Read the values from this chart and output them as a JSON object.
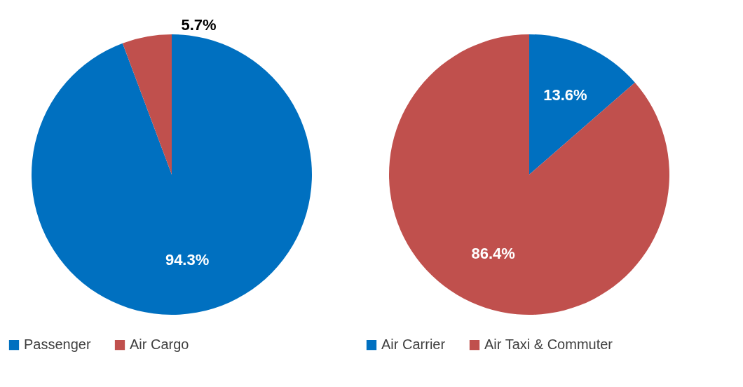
{
  "chart_data": [
    {
      "type": "pie",
      "categories": [
        "Passenger",
        "Air Cargo"
      ],
      "values": [
        94.3,
        5.7
      ],
      "colors": [
        "#0070c0",
        "#c0504d"
      ],
      "value_labels": [
        "94.3%",
        "5.7%"
      ],
      "legend": "bottom"
    },
    {
      "type": "pie",
      "categories": [
        "Air Carrier",
        "Air Taxi & Commuter"
      ],
      "values": [
        13.6,
        86.4
      ],
      "colors": [
        "#0070c0",
        "#c0504d"
      ],
      "value_labels": [
        "13.6%",
        "86.4%"
      ],
      "legend": "bottom"
    }
  ]
}
